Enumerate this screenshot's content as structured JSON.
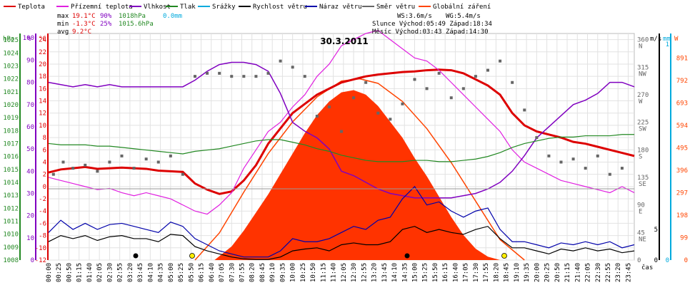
{
  "legend": [
    {
      "label": "Teplota",
      "color": "#dd0000"
    },
    {
      "label": "Přízemní teplota",
      "color": "#e020e0"
    },
    {
      "label": "Vlhkost",
      "color": "#8000c0"
    },
    {
      "label": "Tlak",
      "color": "#228822"
    },
    {
      "label": "Srážky",
      "color": "#00aadd"
    },
    {
      "label": "Rychlost větru",
      "color": "#000000"
    },
    {
      "label": "Náraz větru",
      "color": "#0000aa"
    },
    {
      "label": "Směr větru",
      "color": "#666666"
    },
    {
      "label": "Globální záření",
      "color": "#ff4400"
    }
  ],
  "stats": {
    "max_label": "max",
    "max_temp": "19.1°C",
    "max_hum": "90%",
    "max_press": "1018hPa",
    "max_rain": "0.0mm",
    "min_label": "min",
    "min_temp": "-1.3°C",
    "min_hum": "25%",
    "min_press": "1015.6hPa",
    "avg_label": "avg",
    "avg_temp": "9.2°C",
    "ws": "WS:3.6m/s",
    "wg": "WG:5.4m/s",
    "sun_line": "Slunce Východ:05:49   Západ:18:34",
    "moon_line": "Měsíc  Východ:03:43   Západ:14:30"
  },
  "chart_data": {
    "type": "line",
    "title": "30.3.2011",
    "xlabel": "čas",
    "axis_units": {
      "pressure": "hPa",
      "humidity": "%",
      "temp": "°C",
      "wind": "m/s",
      "rain": "mm",
      "radiation": "W"
    },
    "x_ticks": [
      "00:00",
      "00:25",
      "00:50",
      "01:15",
      "01:40",
      "02:05",
      "02:30",
      "02:55",
      "03:20",
      "03:45",
      "04:10",
      "04:35",
      "05:00",
      "05:25",
      "05:50",
      "06:15",
      "06:40",
      "07:05",
      "07:30",
      "07:55",
      "08:20",
      "08:45",
      "09:10",
      "09:35",
      "10:00",
      "10:25",
      "10:50",
      "11:15",
      "11:40",
      "12:05",
      "12:30",
      "12:55",
      "13:20",
      "13:45",
      "14:10",
      "14:35",
      "15:00",
      "15:25",
      "15:50",
      "16:15",
      "16:40",
      "17:05",
      "17:30",
      "17:55",
      "18:20",
      "18:45",
      "19:10",
      "19:35",
      "20:00",
      "20:25",
      "20:50",
      "21:15",
      "21:40",
      "22:05",
      "22:30",
      "22:55",
      "23:20",
      "23:45"
    ],
    "axes": {
      "pressure": {
        "ticks": [
          "1008",
          "1009",
          "1010",
          "1011",
          "1012",
          "1013",
          "1014",
          "1015",
          "1016",
          "1017",
          "1018",
          "1019",
          "1020",
          "1021",
          "1022",
          "1023",
          "1024",
          "1025"
        ],
        "range": [
          1008,
          1025.5
        ]
      },
      "humidity": {
        "ticks": [
          "0",
          "10",
          "20",
          "30",
          "40",
          "50",
          "60",
          "70",
          "80",
          "90",
          "100"
        ],
        "range": [
          0,
          102
        ]
      },
      "temp": {
        "ticks": [
          "-12",
          "-10",
          "-8",
          "-6",
          "-4",
          "-2",
          "0",
          "2",
          "4",
          "6",
          "8",
          "10",
          "12",
          "14",
          "16",
          "18",
          "20",
          "22",
          "24"
        ],
        "range": [
          -12,
          25
        ]
      },
      "direction": {
        "ticks": [
          "0",
          "45 NE",
          "90 E",
          "135 SE",
          "180 S",
          "225 SW",
          "270 W",
          "315 NW",
          "360 N"
        ],
        "range": [
          0,
          370
        ]
      },
      "wind": {
        "ticks": [
          "0",
          "5"
        ],
        "range": [
          0,
          37
        ]
      },
      "rain": {
        "ticks": [
          "0",
          "1"
        ],
        "range": [
          0,
          1
        ]
      },
      "radiation": {
        "ticks": [
          "0",
          "99",
          "198",
          "297",
          "396",
          "495",
          "594",
          "693",
          "792",
          "891"
        ],
        "range": [
          0,
          1000
        ]
      }
    },
    "series": [
      {
        "name": "Teplota",
        "axis": "temp",
        "color": "#dd0000",
        "x": [
          0,
          0.5,
          1,
          1.5,
          2,
          2.5,
          3,
          3.5,
          4,
          4.5,
          5,
          5.5,
          6,
          6.5,
          7,
          7.5,
          8,
          8.5,
          9,
          9.5,
          10,
          10.5,
          11,
          11.5,
          12,
          12.5,
          13,
          13.5,
          14,
          14.5,
          15,
          15.5,
          16,
          16.5,
          17,
          17.5,
          18,
          18.5,
          19,
          19.5,
          20,
          20.5,
          21,
          21.5,
          22,
          22.5,
          23,
          23.5,
          24
        ],
        "y": [
          2.3,
          2.8,
          3.0,
          3.2,
          2.9,
          3.0,
          3.1,
          3.0,
          2.9,
          2.6,
          2.5,
          2.4,
          0.5,
          -0.5,
          -1.2,
          -0.8,
          1.0,
          3.5,
          7.0,
          9.5,
          12.0,
          13.5,
          15.0,
          16.0,
          17.0,
          17.5,
          18.0,
          18.3,
          18.5,
          18.7,
          18.8,
          19.0,
          19.1,
          19.0,
          18.5,
          17.5,
          16.5,
          15.0,
          12.0,
          10.0,
          9.0,
          8.5,
          8.0,
          7.3,
          7.0,
          6.5,
          6.0,
          5.5,
          5.0
        ]
      },
      {
        "name": "Přízemní teplota",
        "axis": "temp",
        "color": "#e020e0",
        "x": [
          0,
          0.5,
          1,
          1.5,
          2,
          2.5,
          3,
          3.5,
          4,
          4.5,
          5,
          5.5,
          6,
          6.5,
          7,
          7.5,
          8,
          8.5,
          9,
          9.5,
          10,
          10.5,
          11,
          11.5,
          12,
          12.5,
          13,
          13.5,
          14,
          14.5,
          15,
          15.5,
          16,
          16.5,
          17,
          17.5,
          18,
          18.5,
          19,
          19.5,
          20,
          20.5,
          21,
          21.5,
          22,
          22.5,
          23,
          23.5,
          24
        ],
        "y": [
          1.5,
          1.0,
          0.5,
          0.0,
          -0.5,
          -0.3,
          -1.0,
          -1.5,
          -1.0,
          -1.5,
          -2.0,
          -3.0,
          -4.0,
          -4.5,
          -3.0,
          -1.0,
          3.0,
          6.0,
          9.0,
          10.5,
          13.0,
          15.0,
          18.0,
          20.0,
          23.0,
          24.0,
          25.0,
          25.5,
          24.0,
          22.5,
          21.0,
          20.5,
          19.0,
          17.0,
          15.0,
          13.0,
          11.0,
          9.0,
          6.0,
          4.0,
          3.0,
          2.0,
          1.0,
          0.5,
          0.0,
          -0.5,
          -1.0,
          0.0,
          -1.0
        ]
      },
      {
        "name": "Vlhkost",
        "axis": "humidity",
        "color": "#8000c0",
        "x": [
          0,
          0.5,
          1,
          1.5,
          2,
          2.5,
          3,
          3.5,
          4,
          4.5,
          5,
          5.5,
          6,
          6.5,
          7,
          7.5,
          8,
          8.5,
          9,
          9.5,
          10,
          10.5,
          11,
          11.5,
          12,
          12.5,
          13,
          13.5,
          14,
          14.5,
          15,
          15.5,
          16,
          16.5,
          17,
          17.5,
          18,
          18.5,
          19,
          19.5,
          20,
          20.5,
          21,
          21.5,
          22,
          22.5,
          23,
          23.5,
          24
        ],
        "y": [
          80,
          79,
          78,
          79,
          78,
          79,
          78,
          78,
          78,
          78,
          78,
          78,
          81,
          85,
          88,
          89,
          89,
          88,
          85,
          75,
          62,
          58,
          55,
          50,
          40,
          38,
          35,
          32,
          30,
          29,
          28,
          28,
          28,
          28,
          29,
          30,
          32,
          35,
          40,
          47,
          55,
          60,
          65,
          70,
          72,
          75,
          80,
          80,
          78
        ]
      },
      {
        "name": "Tlak",
        "axis": "pressure",
        "color": "#228822",
        "x": [
          0,
          0.5,
          1,
          1.5,
          2,
          2.5,
          3,
          3.5,
          4,
          4.5,
          5,
          5.5,
          6,
          6.5,
          7,
          7.5,
          8,
          8.5,
          9,
          9.5,
          10,
          10.5,
          11,
          11.5,
          12,
          12.5,
          13,
          13.5,
          14,
          14.5,
          15,
          15.5,
          16,
          16.5,
          17,
          17.5,
          18,
          18.5,
          19,
          19.5,
          20,
          20.5,
          21,
          21.5,
          22,
          22.5,
          23,
          23.5,
          24
        ],
        "y": [
          1017.0,
          1016.9,
          1016.9,
          1016.9,
          1016.8,
          1016.8,
          1016.7,
          1016.6,
          1016.5,
          1016.4,
          1016.3,
          1016.2,
          1016.4,
          1016.5,
          1016.6,
          1016.8,
          1017.0,
          1017.2,
          1017.3,
          1017.3,
          1017.1,
          1016.9,
          1016.6,
          1016.4,
          1016.1,
          1015.9,
          1015.7,
          1015.6,
          1015.6,
          1015.6,
          1015.7,
          1015.7,
          1015.6,
          1015.6,
          1015.7,
          1015.8,
          1016.0,
          1016.3,
          1016.7,
          1017.0,
          1017.2,
          1017.4,
          1017.5,
          1017.5,
          1017.6,
          1017.6,
          1017.6,
          1017.7,
          1017.7
        ]
      },
      {
        "name": "Rychlost větru",
        "axis": "wind",
        "color": "#000000",
        "x": [
          0,
          0.5,
          1,
          1.5,
          2,
          2.5,
          3,
          3.5,
          4,
          4.5,
          5,
          5.5,
          6,
          6.5,
          7,
          7.5,
          8,
          8.5,
          9,
          9.5,
          10,
          10.5,
          11,
          11.5,
          12,
          12.5,
          13,
          13.5,
          14,
          14.5,
          15,
          15.5,
          16,
          16.5,
          17,
          17.5,
          18,
          18.5,
          19,
          19.5,
          20,
          20.5,
          21,
          21.5,
          22,
          22.5,
          23,
          23.5,
          24
        ],
        "y": [
          3.0,
          4.0,
          3.5,
          4.0,
          3.2,
          3.8,
          4.0,
          3.5,
          3.5,
          3.0,
          4.2,
          4.0,
          2.2,
          1.5,
          1.0,
          0.5,
          0.2,
          0.1,
          0.1,
          0.5,
          1.5,
          1.8,
          2.0,
          1.5,
          2.5,
          2.8,
          2.5,
          2.5,
          3.0,
          5.0,
          5.5,
          4.5,
          5.0,
          4.5,
          4.2,
          5.0,
          5.5,
          3.5,
          2.0,
          2.0,
          1.5,
          1.0,
          1.8,
          1.5,
          2.0,
          1.5,
          1.8,
          1.2,
          1.5
        ]
      },
      {
        "name": "Náraz větru",
        "axis": "wind",
        "color": "#0000aa",
        "x": [
          0,
          0.5,
          1,
          1.5,
          2,
          2.5,
          3,
          3.5,
          4,
          4.5,
          5,
          5.5,
          6,
          6.5,
          7,
          7.5,
          8,
          8.5,
          9,
          9.5,
          10,
          10.5,
          11,
          11.5,
          12,
          12.5,
          13,
          13.5,
          14,
          14.5,
          15,
          15.5,
          16,
          16.5,
          17,
          17.5,
          18,
          18.5,
          19,
          19.5,
          20,
          20.5,
          21,
          21.5,
          22,
          22.5,
          23,
          23.5,
          24
        ],
        "y": [
          4.5,
          6.5,
          5.0,
          6.0,
          5.0,
          5.8,
          6.0,
          5.5,
          5.0,
          4.5,
          6.2,
          5.5,
          3.5,
          2.5,
          1.5,
          1.0,
          0.5,
          0.5,
          0.5,
          1.5,
          3.5,
          3.0,
          3.0,
          3.5,
          4.5,
          5.5,
          5.0,
          6.5,
          7.0,
          10.0,
          12.0,
          9.0,
          9.5,
          8.0,
          7.0,
          8.0,
          8.5,
          5.0,
          3.0,
          3.0,
          2.5,
          2.0,
          2.8,
          2.5,
          3.0,
          2.5,
          3.0,
          2.0,
          2.5
        ]
      },
      {
        "name": "Směr větru",
        "axis": "direction",
        "color": "#666666",
        "marker": "square",
        "x": [
          0.2,
          0.6,
          1.0,
          1.5,
          2.0,
          2.5,
          3.0,
          3.5,
          4.0,
          4.5,
          5.0,
          5.5,
          6.0,
          6.5,
          7.0,
          7.5,
          8.0,
          8.5,
          9.0,
          9.5,
          10.0,
          10.5,
          11.0,
          11.5,
          12.0,
          12.5,
          13.0,
          13.5,
          14.0,
          14.5,
          15.0,
          15.5,
          16.0,
          16.5,
          17.0,
          17.5,
          18.0,
          18.5,
          19.0,
          19.5,
          20.0,
          20.5,
          21.0,
          21.5,
          22.0,
          22.5,
          23.0,
          23.5
        ],
        "y": [
          140,
          160,
          150,
          155,
          145,
          160,
          170,
          150,
          165,
          160,
          170,
          140,
          300,
          305,
          305,
          300,
          300,
          300,
          305,
          325,
          315,
          300,
          235,
          250,
          210,
          265,
          290,
          240,
          230,
          255,
          295,
          280,
          305,
          265,
          280,
          300,
          310,
          325,
          290,
          245,
          200,
          170,
          160,
          165,
          150,
          170,
          140,
          150
        ]
      }
    ],
    "radiation": {
      "name": "Globální záření",
      "axis": "radiation",
      "color": "#ff3300",
      "type": "area",
      "x": [
        0,
        6.8,
        7.5,
        8.0,
        8.5,
        9.0,
        9.5,
        10.0,
        10.5,
        11.0,
        11.5,
        12.0,
        12.5,
        13.0,
        13.5,
        14.0,
        14.5,
        15.0,
        15.5,
        16.0,
        16.5,
        17.0,
        17.5,
        18.0,
        18.5,
        24
      ],
      "y": [
        0,
        0,
        60,
        130,
        210,
        290,
        380,
        470,
        560,
        640,
        700,
        740,
        750,
        730,
        680,
        610,
        540,
        450,
        370,
        280,
        190,
        110,
        50,
        15,
        0,
        0
      ]
    },
    "clear_sky": {
      "name": "Globální záření",
      "axis": "radiation",
      "color": "#ff4400",
      "x": [
        6.0,
        7.0,
        8.0,
        9.0,
        10.0,
        11.0,
        12.0,
        12.75,
        13.5,
        14.5,
        15.5,
        16.5,
        17.5,
        18.5,
        19.5
      ],
      "y": [
        0,
        120,
        300,
        470,
        610,
        720,
        790,
        800,
        780,
        700,
        580,
        430,
        260,
        90,
        0
      ]
    }
  }
}
